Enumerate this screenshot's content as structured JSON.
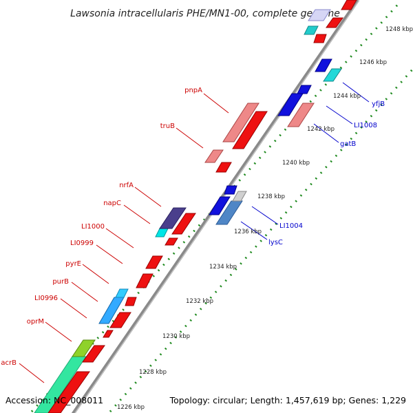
{
  "title": "Lawsonia intracellularis PHE/MN1-00, complete genome",
  "footer": {
    "accession": "Accession: NC_008011",
    "stats": "Topology: circular; Length: 1,457,619 bp; Genes: 1,229"
  },
  "colors": {
    "backbone": "#8a8a8a",
    "tick": "#1f8a1f",
    "label_red": "#cc0000",
    "label_blue": "#0000cc"
  },
  "ticks": [
    "1226 kbp",
    "1228 kbp",
    "1230 kbp",
    "1232 kbp",
    "1234 kbp",
    "1236 kbp",
    "1238 kbp",
    "1240 kbp",
    "1242 kbp",
    "1244 kbp",
    "1246 kbp",
    "1248 kbp"
  ],
  "labels_left": [
    "pnpA",
    "truB",
    "nrfA",
    "napC",
    "LI1000",
    "LI0999",
    "pyrE",
    "purB",
    "LI0996",
    "oprM",
    "acrB"
  ],
  "labels_right": [
    "yfjB",
    "LI1008",
    "gatB",
    "LI1004",
    "lysC"
  ]
}
